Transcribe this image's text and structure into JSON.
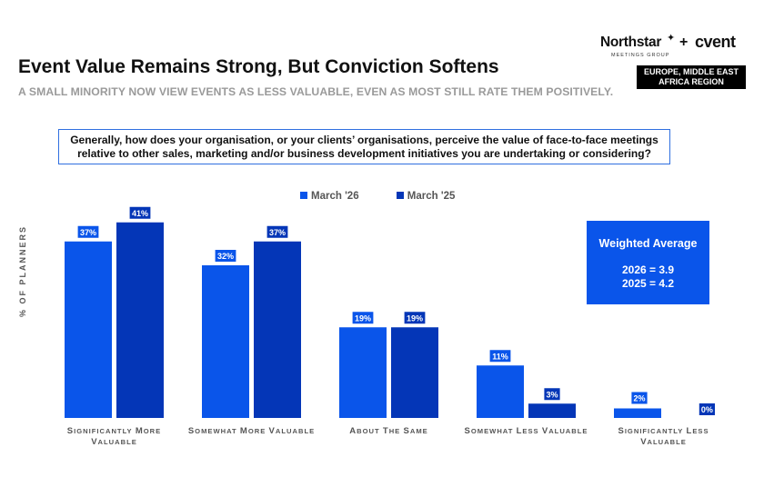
{
  "header": {
    "title": "Event Value Remains Strong, But Conviction Softens",
    "subtitle": "A SMALL MINORITY NOW VIEW EVENTS AS LESS VALUABLE, EVEN AS MOST STILL RATE THEM POSITIVELY."
  },
  "logo": {
    "brand1": "Northstar",
    "brand1_sub": "MEETINGS GROUP",
    "plus": "+",
    "brand2": "cvent"
  },
  "region": {
    "line1": "EUROPE, MIDDLE EAST",
    "line2": "AFRICA REGION"
  },
  "question": {
    "line1": "Generally, how does your organisation, or your clients’ organisations, perceive the value of face-to-face meetings",
    "line2": "relative to other sales, marketing and/or business development initiatives you are undertaking or considering?"
  },
  "weighted_average": {
    "heading": "Weighted Average",
    "line1": "2026 = 3.9",
    "line2": "2025 = 4.2"
  },
  "colors": {
    "series_2026": "#0a55ea",
    "series_2025": "#0436b7"
  },
  "chart_data": {
    "type": "bar",
    "ylabel": "% OF PLANNERS",
    "ylim": [
      0,
      45
    ],
    "grid": false,
    "legend_position": "top-center",
    "categories": [
      [
        "Significantly More",
        "Valuable"
      ],
      [
        "Somewhat More Valuable"
      ],
      [
        "About the Same"
      ],
      [
        "Somewhat Less Valuable"
      ],
      [
        "Significantly Less",
        "Valuable"
      ]
    ],
    "series": [
      {
        "name": "March '26",
        "values": [
          37,
          32,
          19,
          11,
          2
        ]
      },
      {
        "name": "March '25",
        "values": [
          41,
          37,
          19,
          3,
          0
        ]
      }
    ],
    "value_suffix": "%"
  }
}
